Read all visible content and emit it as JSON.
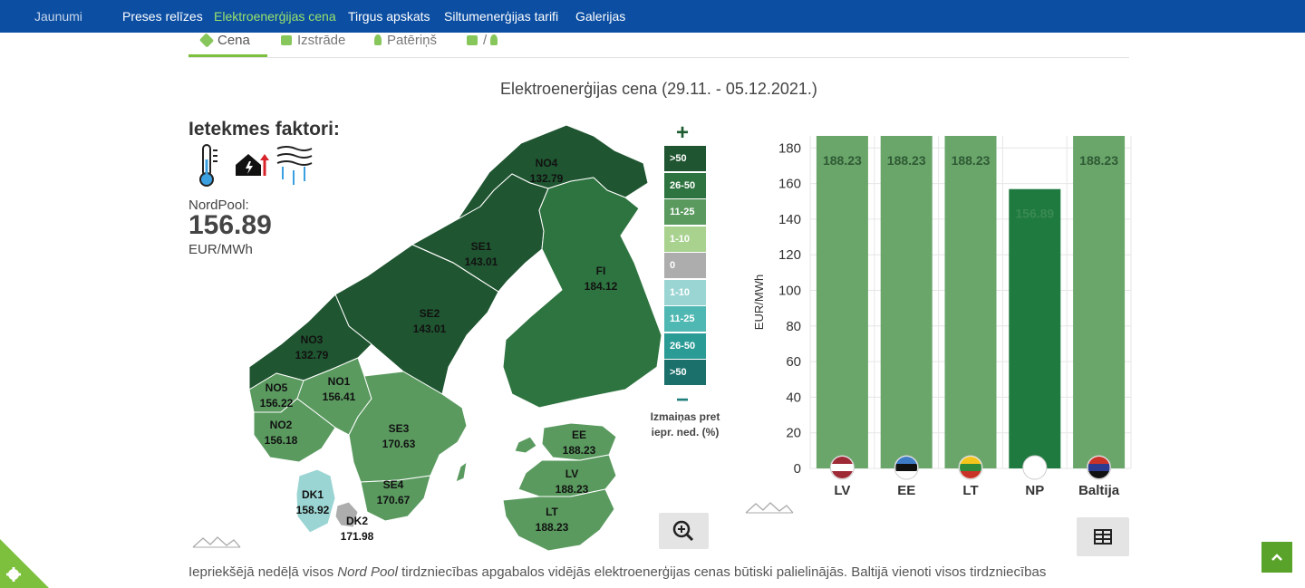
{
  "nav": {
    "items": [
      "Jaunumi",
      "Preses relīzes",
      "Elektroenerģijas cena",
      "Tirgus apskats",
      "Siltumenerģijas tarifi",
      "Galerijas"
    ],
    "active_color": "#9be36b"
  },
  "tabs": {
    "cena": "Cena",
    "izstrade": "Izstrāde",
    "paterins": "Patēriņš",
    "combo": "/"
  },
  "title": "Elektroenerģijas cena (29.11. - 05.12.2021.)",
  "factors": {
    "title": "Ietekmes faktori:",
    "icons": [
      "thermometer-icon",
      "house-power-icon",
      "wind-rain-icon"
    ]
  },
  "nordpool": {
    "label": "NordPool:",
    "value": "156.89",
    "unit": "EUR/MWh"
  },
  "regions": {
    "NO4": {
      "name": "NO4",
      "value": "132.79"
    },
    "SE1": {
      "name": "SE1",
      "value": "143.01"
    },
    "FI": {
      "name": "FI",
      "value": "184.12"
    },
    "SE2": {
      "name": "SE2",
      "value": "143.01"
    },
    "NO3": {
      "name": "NO3",
      "value": "132.79"
    },
    "NO1": {
      "name": "NO1",
      "value": "156.41"
    },
    "NO5": {
      "name": "NO5",
      "value": "156.22"
    },
    "NO2": {
      "name": "NO2",
      "value": "156.18"
    },
    "SE3": {
      "name": "SE3",
      "value": "170.63"
    },
    "SE4": {
      "name": "SE4",
      "value": "170.67"
    },
    "DK1": {
      "name": "DK1",
      "value": "158.92"
    },
    "DK2": {
      "name": "DK2",
      "value": "171.98"
    },
    "EE": {
      "name": "EE",
      "value": "188.23"
    },
    "LV": {
      "name": "LV",
      "value": "188.23"
    },
    "LT": {
      "name": "LT",
      "value": "188.23"
    }
  },
  "legend": {
    "plus": "+",
    "minus": "−",
    "items": [
      {
        "label": ">50",
        "color": "#1f5530"
      },
      {
        "label": "26-50",
        "color": "#2e7440"
      },
      {
        "label": "11-25",
        "color": "#5a9a5f"
      },
      {
        "label": "1-10",
        "color": "#a9d28f"
      },
      {
        "label": "0",
        "color": "#adadad"
      },
      {
        "label": "1-10",
        "color": "#9bd5d3"
      },
      {
        "label": "11-25",
        "color": "#4fb8b2"
      },
      {
        "label": "26-50",
        "color": "#2a9b95"
      },
      {
        "label": ">50",
        "color": "#1b706b"
      }
    ],
    "caption_line1": "Izmaiņas pret",
    "caption_line2": "iepr. ned. (%)"
  },
  "chart_data": {
    "type": "bar",
    "categories": [
      "LV",
      "EE",
      "LT",
      "NP",
      "Baltija"
    ],
    "values": [
      188.23,
      188.23,
      188.23,
      156.89,
      188.23
    ],
    "value_labels": [
      "188.23",
      "188.23",
      "188.23",
      "156.89",
      "188.23"
    ],
    "bar_colors": [
      "#6aa66a",
      "#6aa66a",
      "#6aa66a",
      "#1f7a3f",
      "#6aa66a"
    ],
    "ylabel": "EUR/MWh",
    "ylim": [
      0,
      188.23
    ],
    "yticks": [
      0,
      20,
      40,
      60,
      80,
      100,
      120,
      140,
      160,
      180
    ],
    "grid": true
  },
  "bottom_text": {
    "before": "Iepriekšējā nedēļā visos ",
    "italic": "Nord Pool",
    "after": " tirdzniecības apgabalos vidējās elektroenerģijas cenas būtiski palielinājās. Baltijā vienoti visos tirdzniecības"
  }
}
